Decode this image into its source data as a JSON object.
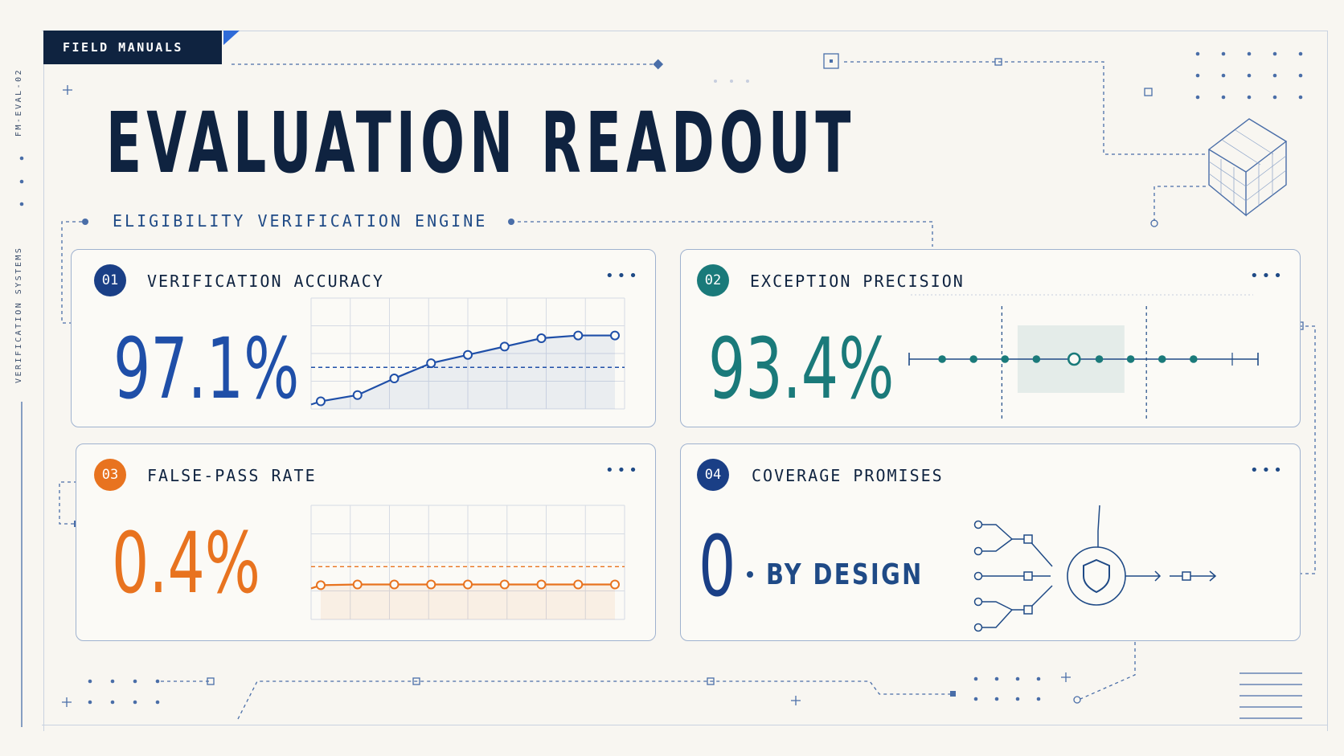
{
  "header": {
    "tag": "FIELD MANUALS",
    "side_code": "FM-EVAL-02",
    "side_label": "VERIFICATION SYSTEMS",
    "title": "EVALUATION READOUT",
    "subtitle": "ELIGIBILITY VERIFICATION ENGINE"
  },
  "colors": {
    "navy": "#0f2340",
    "blue": "#1f4fa8",
    "teal": "#1a7a7a",
    "orange": "#e8731f"
  },
  "cards": [
    {
      "number": "01",
      "title": "VERIFICATION ACCURACY",
      "value": "97.1%",
      "more_label": "•••",
      "badge_color": "#1a3f86",
      "value_color": "#1f4fa8"
    },
    {
      "number": "02",
      "title": "EXCEPTION PRECISION",
      "value": "93.4%",
      "more_label": "•••",
      "badge_color": "#1a7a7a",
      "value_color": "#1a7a7a"
    },
    {
      "number": "03",
      "title": "FALSE-PASS RATE",
      "value": "0.4%",
      "more_label": "•••",
      "badge_color": "#e8731f",
      "value_color": "#e8731f"
    },
    {
      "number": "04",
      "title": "COVERAGE PROMISES",
      "value": "0",
      "suffix": "BY DESIGN",
      "more_label": "•••",
      "badge_color": "#1a3f86",
      "value_color": "#1a3f86"
    }
  ],
  "chart_data": [
    {
      "type": "line",
      "series": [
        {
          "values": [
            0.55,
            1.0,
            2.2,
            3.3,
            3.9,
            4.5,
            5.1,
            5.3,
            5.3
          ]
        }
      ],
      "ylim": [
        0,
        8
      ],
      "reference_line": 3.0,
      "color": "#1f4fa8"
    },
    {
      "type": "scatter",
      "x": [
        1,
        2,
        3,
        4,
        5.2,
        6,
        7,
        8,
        9
      ],
      "highlight_range": [
        3.4,
        6.8
      ],
      "marker_hollow_index": 4,
      "color": "#1a7a7a"
    },
    {
      "type": "line",
      "series": [
        {
          "values": [
            2.4,
            2.45,
            2.45,
            2.45,
            2.45,
            2.45,
            2.45,
            2.45,
            2.45
          ]
        }
      ],
      "ylim": [
        0,
        8
      ],
      "reference_line": 3.7,
      "color": "#e8731f"
    },
    {
      "type": "diagram",
      "icon": "shield-icon"
    }
  ]
}
